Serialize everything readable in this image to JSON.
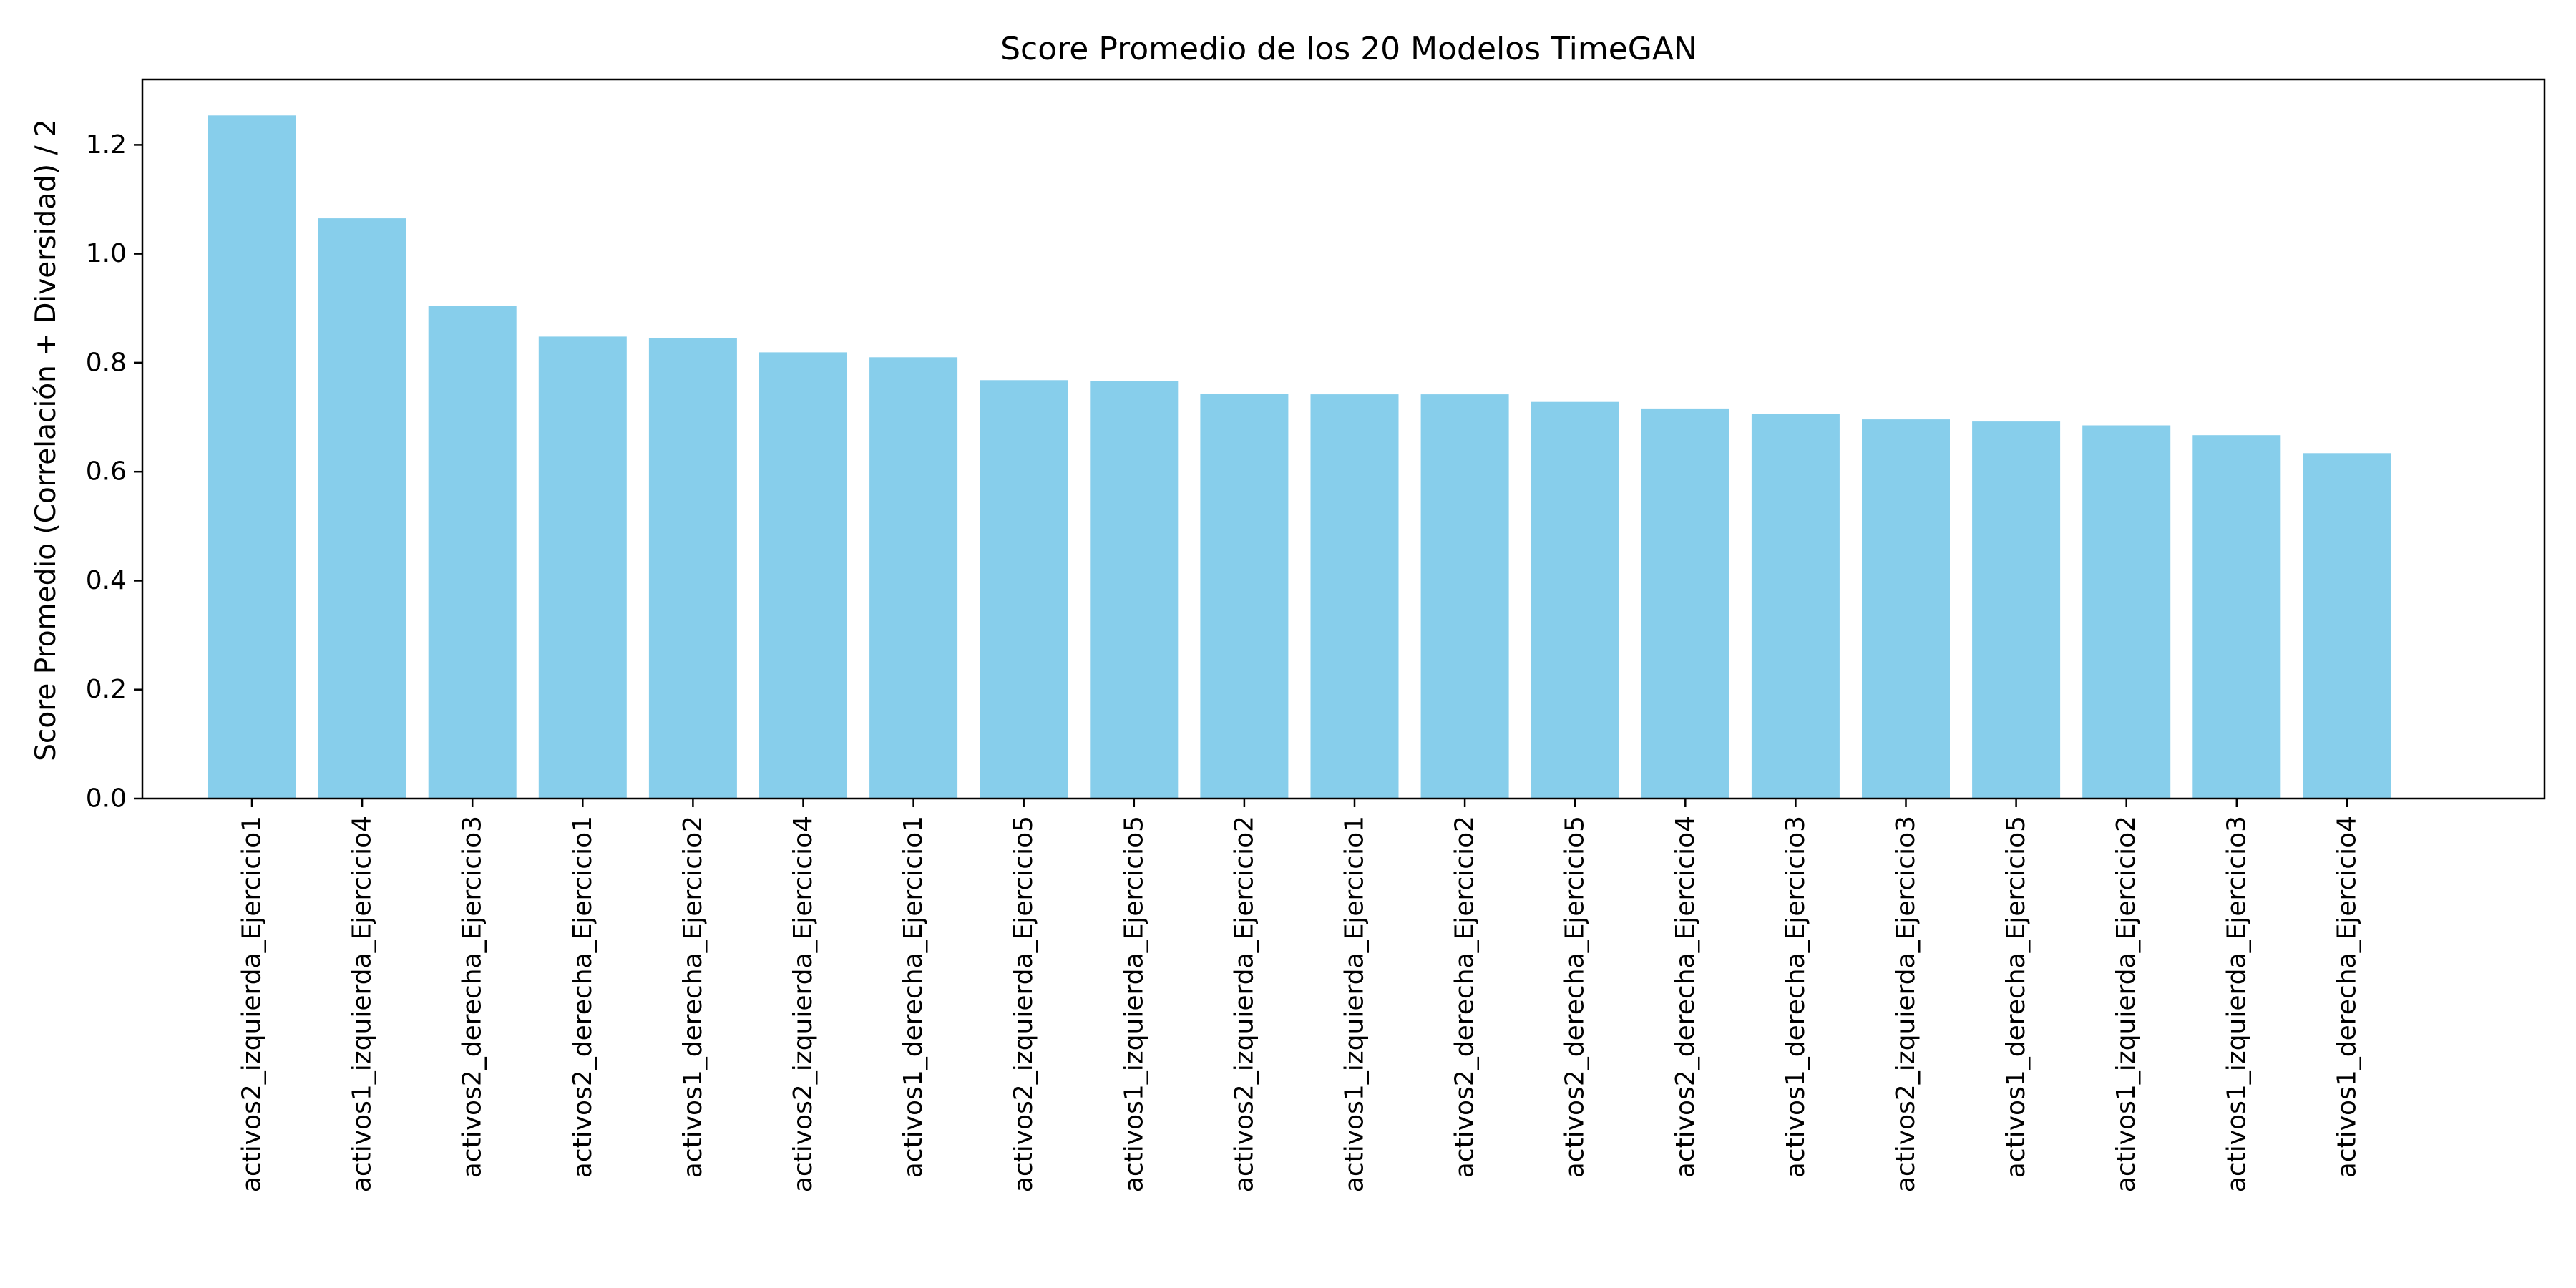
{
  "chart_data": {
    "type": "bar",
    "title": "Score Promedio de los 20 Modelos TimeGAN",
    "xlabel": "",
    "ylabel": "Score Promedio (Correlación + Diversidad) / 2",
    "categories": [
      "activos2_izquierda_Ejercicio1",
      "activos1_izquierda_Ejercicio4",
      "activos2_derecha_Ejercicio3",
      "activos2_derecha_Ejercicio1",
      "activos1_derecha_Ejercicio2",
      "activos2_izquierda_Ejercicio4",
      "activos1_derecha_Ejercicio1",
      "activos2_izquierda_Ejercicio5",
      "activos1_izquierda_Ejercicio5",
      "activos2_izquierda_Ejercicio2",
      "activos1_izquierda_Ejercicio1",
      "activos2_derecha_Ejercicio2",
      "activos2_derecha_Ejercicio5",
      "activos2_derecha_Ejercicio4",
      "activos1_derecha_Ejercicio3",
      "activos2_izquierda_Ejercicio3",
      "activos1_derecha_Ejercicio5",
      "activos1_izquierda_Ejercicio2",
      "activos1_izquierda_Ejercicio3",
      "activos1_derecha_Ejercicio4"
    ],
    "values": [
      1.254,
      1.065,
      0.905,
      0.848,
      0.845,
      0.819,
      0.81,
      0.768,
      0.766,
      0.743,
      0.742,
      0.742,
      0.728,
      0.716,
      0.706,
      0.696,
      0.692,
      0.685,
      0.667,
      0.634
    ],
    "ylim": [
      0,
      1.32
    ],
    "yticks": [
      0.0,
      0.2,
      0.4,
      0.6,
      0.8,
      1.0,
      1.2
    ],
    "ytick_labels": [
      "0.0",
      "0.2",
      "0.4",
      "0.6",
      "0.8",
      "1.0",
      "1.2"
    ],
    "bar_color": "#87CEEB",
    "grid": false,
    "legend": "none"
  }
}
